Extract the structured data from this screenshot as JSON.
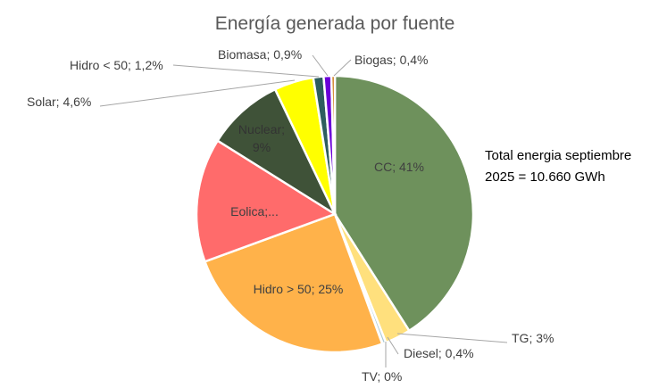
{
  "chart_data": {
    "type": "pie",
    "title": "Energía generada por fuente",
    "annotation_line1": "Total energia septiembre",
    "annotation_line2": "2025 = 10.660 GWh",
    "slices": [
      {
        "name": "CC",
        "value": 41,
        "label": "CC; 41%",
        "color": "#6E915C"
      },
      {
        "name": "TG",
        "value": 3,
        "label": "TG; 3%",
        "color": "#FFE07D"
      },
      {
        "name": "Diesel",
        "value": 0.4,
        "label": "Diesel; 0,4%",
        "color": "#A9C9D6"
      },
      {
        "name": "TV",
        "value": 0.05,
        "label": "TV; 0%",
        "color": "#2F8F8F"
      },
      {
        "name": "Hidro > 50",
        "value": 25,
        "label": "Hidro > 50; 25%",
        "color": "#FFB24A"
      },
      {
        "name": "Eolica",
        "value": 14.5,
        "label": "Eolica;...",
        "color": "#FF6B6B"
      },
      {
        "name": "Nuclear",
        "value": 9,
        "label": "Nuclear; 9%",
        "color": "#3F5238"
      },
      {
        "name": "Solar",
        "value": 4.6,
        "label": "Solar; 4,6%",
        "color": "#FFFF00"
      },
      {
        "name": "Hidro < 50",
        "value": 1.2,
        "label": "Hidro < 50; 1,2%",
        "color": "#2E5E5E"
      },
      {
        "name": "Biomasa",
        "value": 0.9,
        "label": "Biomasa; 0,9%",
        "color": "#6A00D8"
      },
      {
        "name": "Biogas",
        "value": 0.4,
        "label": "Biogas; 0,4%",
        "color": "#C86A00"
      }
    ],
    "legend": "none"
  }
}
